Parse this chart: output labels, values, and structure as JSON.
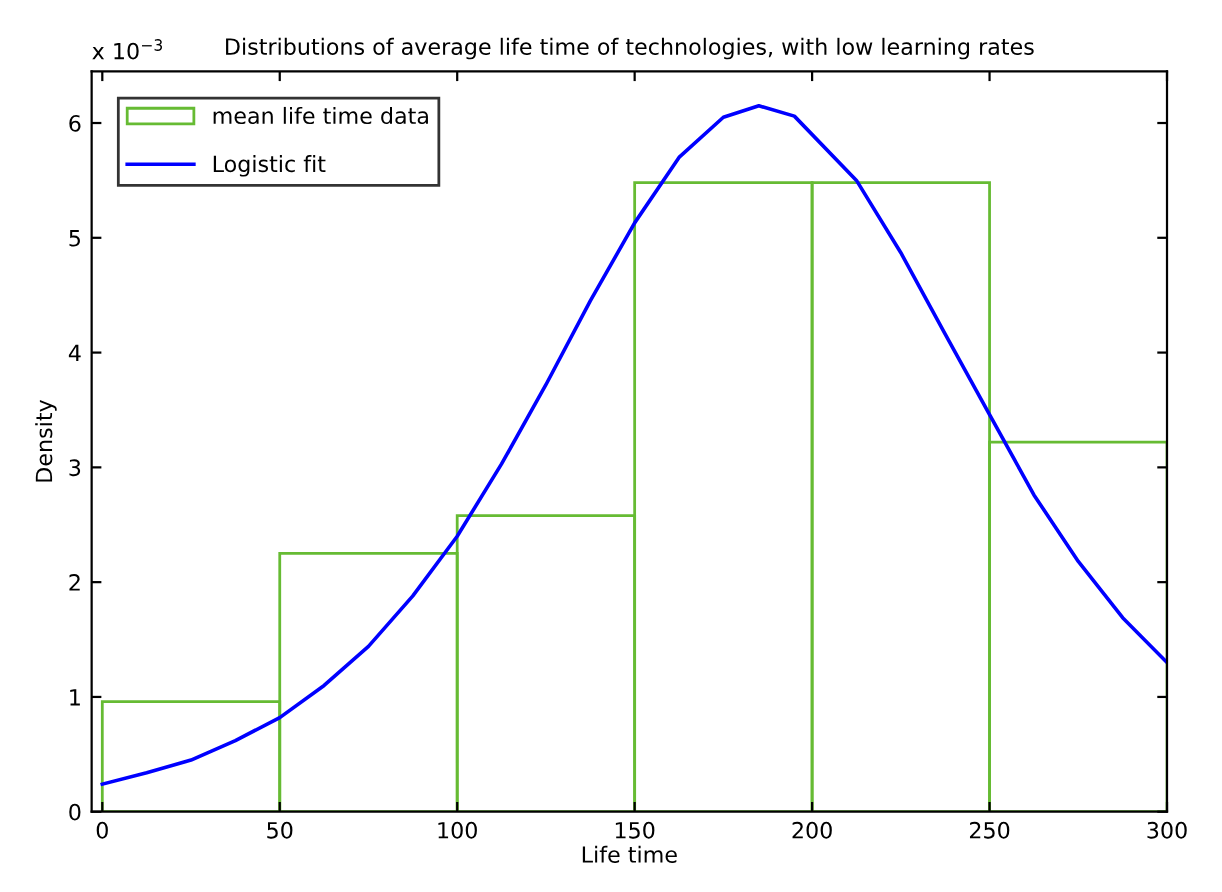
{
  "chart_data": {
    "type": "histogram",
    "title": "Distributions of average life time of technologies, with low learning rates",
    "xlabel": "Life time",
    "ylabel": "Density",
    "annotations": [
      "x 10$^{−3}$"
    ],
    "series": [
      {
        "name": "mean life time data",
        "color": "#66bb33",
        "bins": [
          0,
          50,
          100,
          150,
          200,
          250,
          300
        ],
        "values": [
          0.96,
          2.25,
          2.58,
          5.48,
          5.48,
          3.22
        ]
      },
      {
        "name": "Logistic fit",
        "type": "line",
        "color": "#0000ff",
        "x": [
          0,
          12.5,
          25,
          37.5,
          50,
          62.5,
          75,
          87.5,
          100,
          112.5,
          125,
          137.5,
          150,
          162.5,
          175,
          185,
          195,
          212.5,
          225,
          237.5,
          250,
          262.5,
          275,
          287.5,
          300
        ],
        "values": [
          0.24,
          0.34,
          0.45,
          0.62,
          0.82,
          1.1,
          1.44,
          1.88,
          2.4,
          3.03,
          3.72,
          4.45,
          5.13,
          5.7,
          6.05,
          6.15,
          6.06,
          5.5,
          4.87,
          4.16,
          3.46,
          2.76,
          2.18,
          1.69,
          1.3
        ]
      }
    ],
    "xlim": [
      -3,
      300
    ],
    "ylim": [
      0,
      6.45
    ],
    "xticks": [
      0,
      50,
      100,
      150,
      200,
      250,
      300
    ],
    "yticks": [
      0,
      1,
      2,
      3,
      4,
      5,
      6
    ],
    "grid": false,
    "legend": "top left"
  }
}
